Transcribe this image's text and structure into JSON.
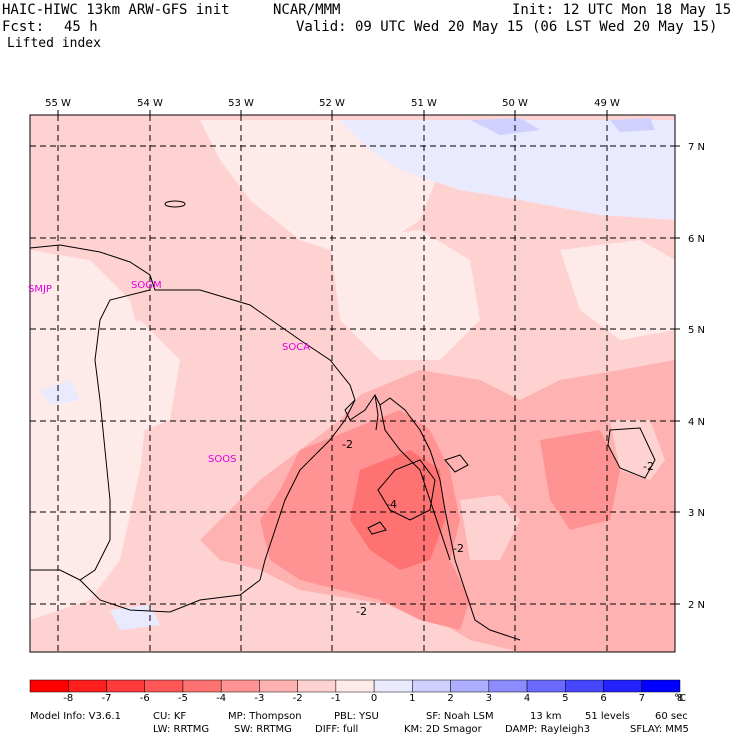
{
  "header": {
    "model": "HAIC-HIWC 13km ARW-GFS init",
    "org": "NCAR/MMM",
    "init": "Init: 12 UTC Mon 18 May 15",
    "fcst_label": "Fcst:",
    "fcst_value": "45 h",
    "valid": "Valid: 09 UTC Wed 20 May 15 (06 LST Wed 20 May 15)",
    "field": "Lifted index"
  },
  "map": {
    "lon_labels": [
      "55 W",
      "54 W",
      "53 W",
      "52 W",
      "51 W",
      "50 W",
      "49 W"
    ],
    "lat_labels": [
      "7 N",
      "6 N",
      "5 N",
      "4 N",
      "3 N",
      "2 N"
    ],
    "stations": [
      "SMJP",
      "SOGM",
      "SOCA",
      "SOOS"
    ],
    "contour_labels": [
      "-2",
      "-4",
      "-2",
      "-2",
      "-2"
    ],
    "station_color": "#e000e0"
  },
  "colorbar": {
    "labels": [
      "-8",
      "-7",
      "-6",
      "-5",
      "-4",
      "-3",
      "-2",
      "-1",
      "0",
      "1",
      "2",
      "3",
      "4",
      "5",
      "6",
      "7",
      "8"
    ],
    "unit": "°C",
    "colors": [
      "#ff0000",
      "#ff1e1e",
      "#ff3a3a",
      "#ff5656",
      "#ff7272",
      "#ff9292",
      "#ffb2b2",
      "#ffd2d2",
      "#ffeaea",
      "#eaeaff",
      "#d0d0ff",
      "#aeaeff",
      "#8c8cff",
      "#6a6aff",
      "#4646ff",
      "#2222ff",
      "#0000ff"
    ]
  },
  "footer": {
    "line1": [
      "Model Info: V3.6.1",
      "CU: KF",
      "MP: Thompson",
      "PBL: YSU",
      "SF: Noah LSM",
      "13 km",
      "51 levels",
      "60 sec"
    ],
    "line2": [
      "LW: RRTMG",
      "SW: RRTMG",
      "DIFF: full",
      "KM: 2D Smagor",
      "DAMP: Rayleigh3",
      "SFLAY: MM5"
    ]
  }
}
